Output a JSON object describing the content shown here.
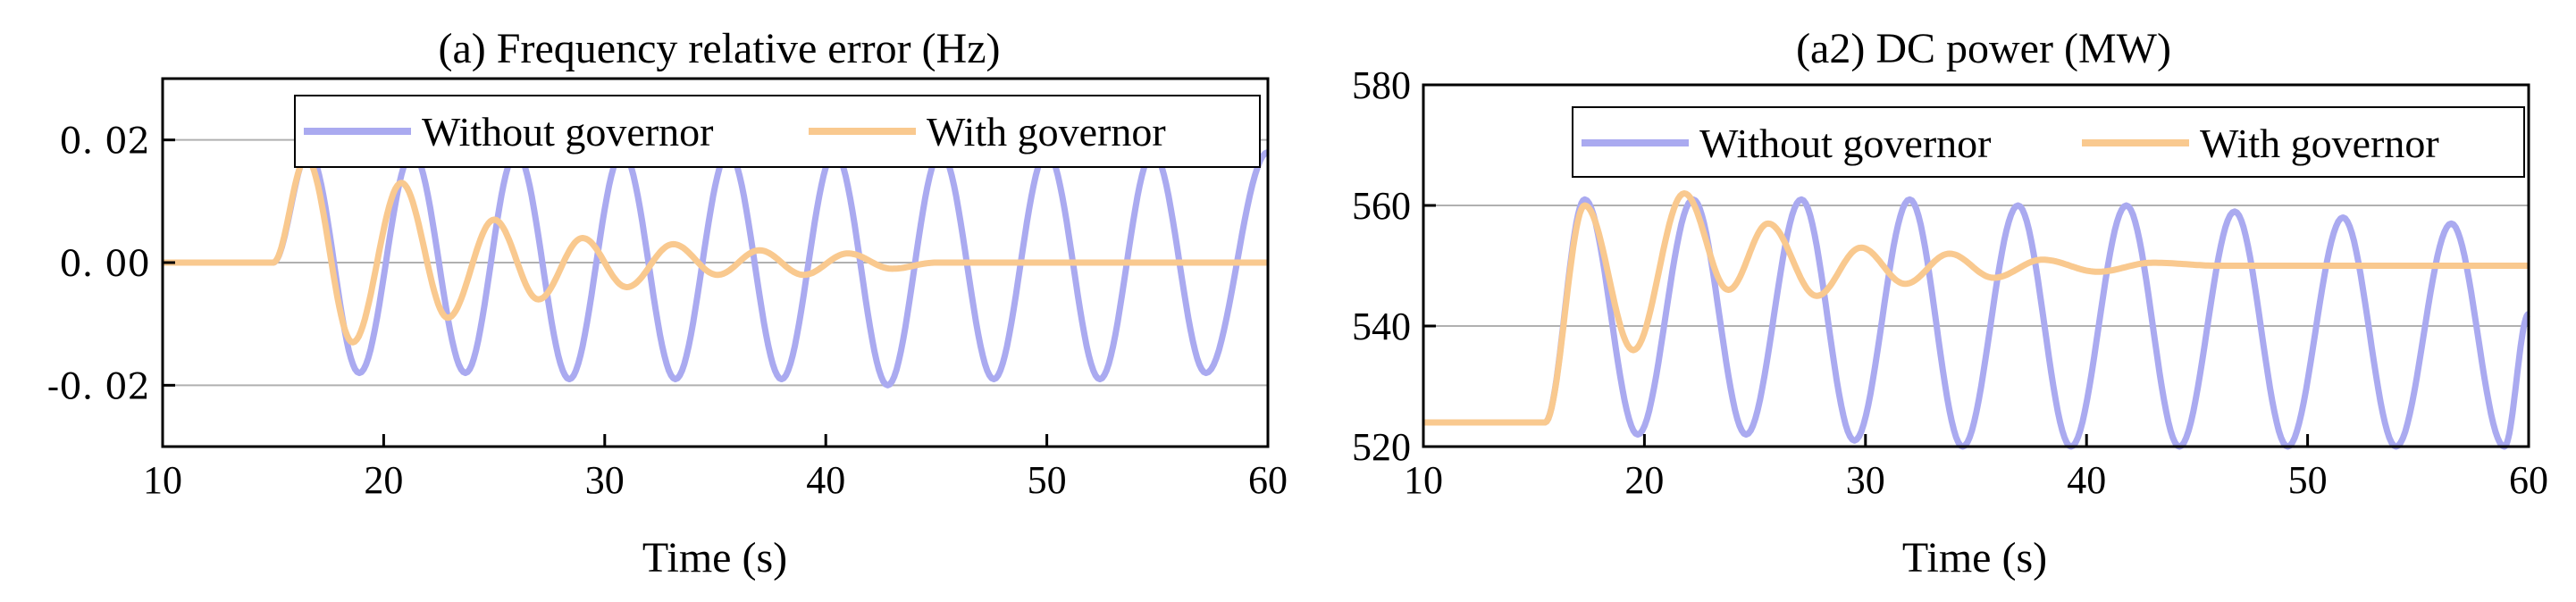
{
  "colors": {
    "without": "#aaaaf0",
    "with": "#f9c98f",
    "grid": "#b0b0b0",
    "axis": "#000000"
  },
  "chart_data": [
    {
      "type": "line",
      "title": "(a) Frequency relative error (Hz)",
      "xlabel": "Time (s)",
      "ylabel": "",
      "xlim": [
        10,
        60
      ],
      "ylim": [
        -0.03,
        0.03
      ],
      "xticks": [
        "10",
        "20",
        "30",
        "40",
        "50",
        "60"
      ],
      "yticks": [
        "0. 02",
        "0. 00",
        "-0. 02"
      ],
      "ytick_values": [
        0.02,
        0.0,
        -0.02
      ],
      "grid": "horizontal",
      "legend_position": "top",
      "series": [
        {
          "name": "Without governor",
          "color": "#aaaaf0",
          "x": [
            10,
            15,
            16.6,
            18.9,
            21.3,
            23.7,
            26.0,
            28.4,
            30.8,
            33.2,
            35.6,
            38.0,
            40.4,
            42.8,
            45.2,
            47.6,
            50.0,
            52.4,
            54.8,
            57.2,
            60.0
          ],
          "y": [
            0,
            0,
            0.018,
            -0.018,
            0.018,
            -0.018,
            0.018,
            -0.019,
            0.018,
            -0.019,
            0.018,
            -0.019,
            0.018,
            -0.02,
            0.018,
            -0.019,
            0.018,
            -0.019,
            0.018,
            -0.018,
            0.018
          ]
        },
        {
          "name": "With governor",
          "color": "#f9c98f",
          "x": [
            10,
            15,
            16.5,
            18.6,
            20.8,
            22.9,
            25.0,
            27.0,
            29.0,
            31.0,
            33.1,
            35.1,
            37.0,
            39.0,
            41.0,
            43.0,
            45.0,
            60.0
          ],
          "y": [
            0,
            0,
            0.017,
            -0.013,
            0.013,
            -0.009,
            0.007,
            -0.006,
            0.004,
            -0.004,
            0.003,
            -0.002,
            0.002,
            -0.002,
            0.0015,
            -0.001,
            0.0,
            0.0
          ]
        }
      ]
    },
    {
      "type": "line",
      "title": "(a2) DC power (MW)",
      "xlabel": "Time (s)",
      "ylabel": "",
      "xlim": [
        10,
        60
      ],
      "ylim": [
        520,
        580
      ],
      "xticks": [
        "10",
        "20",
        "30",
        "40",
        "50",
        "60"
      ],
      "yticks": [
        "520",
        "540",
        "560",
        "580"
      ],
      "ytick_values": [
        520,
        540,
        560,
        580
      ],
      "grid": "horizontal",
      "legend_position": "top-right",
      "series": [
        {
          "name": "Without governor",
          "color": "#aaaaf0",
          "x": [
            10,
            15.5,
            17.3,
            19.7,
            22.2,
            24.6,
            27.1,
            29.5,
            32.0,
            34.4,
            36.9,
            39.3,
            41.8,
            44.2,
            46.7,
            49.1,
            51.6,
            54.0,
            56.5,
            58.9,
            60.0
          ],
          "y": [
            524,
            524,
            561,
            522,
            561,
            522,
            561,
            521,
            561,
            520,
            560,
            520,
            560,
            520,
            559,
            520,
            558,
            520,
            557,
            520,
            542
          ]
        },
        {
          "name": "With governor",
          "color": "#f9c98f",
          "x": [
            10,
            15.5,
            17.3,
            19.5,
            21.8,
            23.8,
            25.6,
            27.8,
            29.8,
            31.8,
            33.8,
            35.8,
            38.0,
            40.5,
            43.0,
            46.0,
            60.0
          ],
          "y": [
            524,
            524,
            560,
            536,
            562,
            546,
            557,
            545,
            553,
            547,
            552,
            548,
            551,
            549,
            550.5,
            550,
            550
          ]
        }
      ]
    }
  ]
}
